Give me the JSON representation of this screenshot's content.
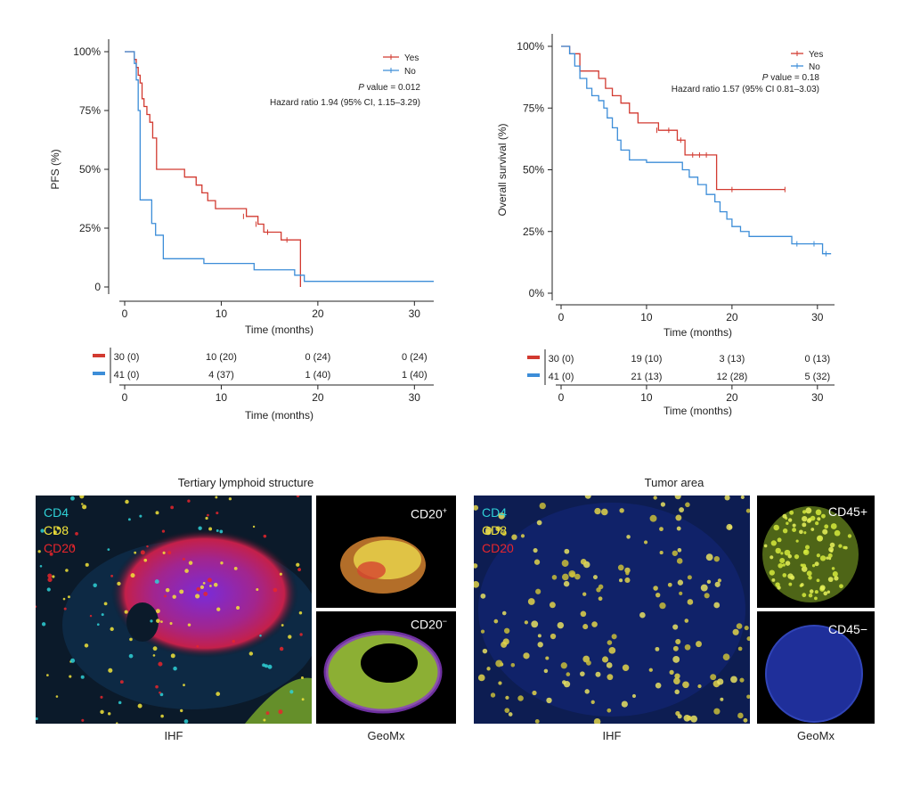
{
  "chart_data": [
    {
      "type": "line",
      "subtype": "kaplan-meier",
      "title": "",
      "xlabel": "Time (months)",
      "ylabel": "PFS (%)",
      "xlim": [
        0,
        32
      ],
      "ylim": [
        0,
        100
      ],
      "xticks": [
        "0",
        "10",
        "20",
        "30"
      ],
      "yticks": [
        "0",
        "25%",
        "50%",
        "75%",
        "100%"
      ],
      "legend_position": "top-right",
      "annotations": [
        "P value = 0.012",
        "Hazard ratio 1.94 (95% CI, 1.15–3.29)"
      ],
      "series": [
        {
          "name": "Yes",
          "color": "#d23a30",
          "x": [
            0,
            1.0,
            1.0,
            1.2,
            1.4,
            1.6,
            1.8,
            2.0,
            2.3,
            2.6,
            2.9,
            3.3,
            5.2,
            6.2,
            7.4,
            8.0,
            8.6,
            9.4,
            10.5,
            12.6,
            13.0,
            13.8,
            14.4,
            15.6,
            16.2,
            18.2,
            18.2
          ],
          "y": [
            100,
            100,
            96.7,
            93.3,
            90.0,
            86.7,
            80.0,
            76.7,
            73.3,
            70.0,
            63.3,
            50.0,
            50.0,
            46.7,
            43.3,
            40.0,
            36.7,
            33.3,
            33.3,
            30.0,
            30.0,
            26.7,
            23.3,
            23.3,
            20.0,
            20.0,
            0
          ],
          "censor_x": [
            12.3,
            13.6,
            14.8,
            16.8
          ],
          "censor_y": [
            30.0,
            26.7,
            23.3,
            20.0
          ]
        },
        {
          "name": "No",
          "color": "#3c8dd8",
          "x": [
            0,
            1.0,
            1.2,
            1.4,
            1.6,
            1.8,
            2.6,
            2.8,
            3.2,
            4.0,
            6.0,
            8.2,
            10.0,
            13.4,
            14.6,
            17.6,
            18.6,
            32
          ],
          "y": [
            100,
            95,
            88,
            75,
            37,
            37,
            37,
            27,
            22,
            12,
            12,
            10,
            10,
            7.3,
            7.3,
            5,
            2.4,
            2.4
          ],
          "censor_x": [],
          "censor_y": []
        }
      ],
      "risk_table": {
        "xlabel": "Time (months)",
        "times": [
          0,
          10,
          20,
          30
        ],
        "rows": [
          {
            "name": "Yes",
            "color": "#d23a30",
            "values": [
              "30 (0)",
              "10 (20)",
              "0 (24)",
              "0 (24)"
            ]
          },
          {
            "name": "No",
            "color": "#3c8dd8",
            "values": [
              "41 (0)",
              "4 (37)",
              "1 (40)",
              "1 (40)"
            ]
          }
        ]
      }
    },
    {
      "type": "line",
      "subtype": "kaplan-meier",
      "title": "",
      "xlabel": "Time (months)",
      "ylabel": "Overall survival (%)",
      "xlim": [
        0,
        32
      ],
      "ylim": [
        0,
        100
      ],
      "xticks": [
        "0",
        "10",
        "20",
        "30"
      ],
      "yticks": [
        "0%",
        "25%",
        "50%",
        "75%",
        "100%"
      ],
      "legend_position": "top-right",
      "annotations": [
        "P value = 0.18",
        "Hazard ratio 1.57 (95% CI 0.81–3.03)"
      ],
      "series": [
        {
          "name": "Yes",
          "color": "#d23a30",
          "x": [
            0,
            0.5,
            1.0,
            2.2,
            4.4,
            5.2,
            6.0,
            7.0,
            8.0,
            9.0,
            11.4,
            13.6,
            14.0,
            14.5,
            18.2,
            26.2
          ],
          "y": [
            100,
            100,
            97,
            90,
            87,
            83,
            80,
            77,
            73,
            69,
            66,
            62,
            62,
            56,
            42,
            42
          ],
          "censor_x": [
            11.2,
            12.6,
            14.0,
            15.4,
            16.2,
            17.0,
            20.0,
            26.2
          ],
          "censor_y": [
            66,
            66,
            62,
            56,
            56,
            56,
            42,
            42
          ]
        },
        {
          "name": "No",
          "color": "#3c8dd8",
          "x": [
            0,
            0.6,
            1.0,
            1.6,
            2.2,
            3.0,
            3.6,
            4.4,
            5.0,
            5.4,
            6.0,
            6.6,
            7.0,
            8.0,
            10.0,
            13.0,
            14.2,
            15.0,
            16.0,
            17.0,
            18.0,
            18.6,
            19.4,
            20.0,
            21.0,
            22.0,
            24.0,
            27.0,
            30.6,
            31.6
          ],
          "y": [
            100,
            100,
            97,
            92,
            87,
            83,
            80,
            78,
            75,
            71,
            67,
            62,
            58,
            54,
            53,
            53,
            50,
            47,
            44,
            40,
            37,
            33,
            30,
            27,
            25,
            23,
            23,
            20,
            16,
            16
          ],
          "censor_x": [
            27.6,
            29.6,
            31.0
          ],
          "censor_y": [
            20,
            20,
            16
          ]
        }
      ],
      "risk_table": {
        "xlabel": "Time (months)",
        "times": [
          0,
          10,
          20,
          30
        ],
        "rows": [
          {
            "name": "Yes",
            "color": "#d23a30",
            "values": [
              "30 (0)",
              "19 (10)",
              "3 (13)",
              "0 (13)"
            ]
          },
          {
            "name": "No",
            "color": "#3c8dd8",
            "values": [
              "41 (0)",
              "21 (13)",
              "12 (28)",
              "5 (32)"
            ]
          }
        ]
      }
    }
  ],
  "figure_b": {
    "left": {
      "title": "Tertiary lymphoid structure",
      "markers": [
        {
          "label": "CD4",
          "color": "#2fd1d6"
        },
        {
          "label": "CD8",
          "color": "#f2e43a"
        },
        {
          "label": "CD20",
          "color": "#e8262c"
        }
      ],
      "geomx_top": "CD20",
      "geomx_top_sup": "+",
      "geomx_bottom": "CD20",
      "geomx_bottom_sup": "−",
      "caption_left": "IHF",
      "caption_right": "GeoMx"
    },
    "right": {
      "title": "Tumor area",
      "markers": [
        {
          "label": "CD4",
          "color": "#2fd1d6"
        },
        {
          "label": "CD8",
          "color": "#f2e43a"
        },
        {
          "label": "CD20",
          "color": "#e8262c"
        }
      ],
      "geomx_top": "CD45+",
      "geomx_bottom": "CD45−",
      "caption_left": "IHF",
      "caption_right": "GeoMx"
    }
  }
}
